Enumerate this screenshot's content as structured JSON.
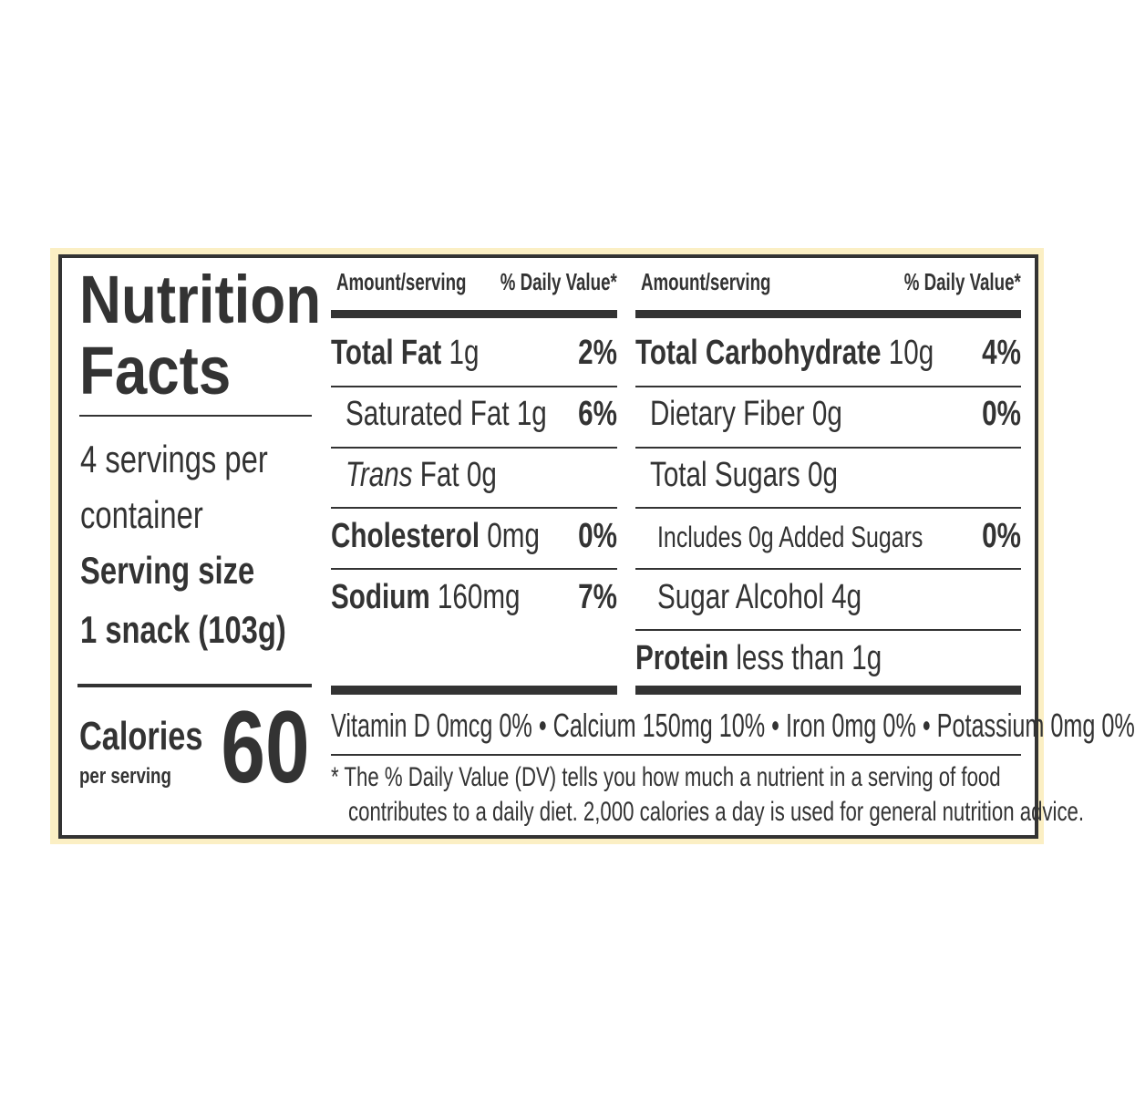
{
  "title": [
    "Nutrition",
    "Facts"
  ],
  "servings_per_container": [
    "4 servings per",
    "container"
  ],
  "serving_size_label": "Serving size",
  "serving_size_value": "1 snack (103g)",
  "calories_label": "Calories",
  "calories_sub": "per serving",
  "calories_value": "60",
  "header": {
    "amount": "Amount/serving",
    "dv": "% Daily Value*"
  },
  "left_rows": [
    {
      "bold": "Total Fat",
      "value": " 1g",
      "dv": "2%"
    },
    {
      "bold": "",
      "value": "Saturated Fat 1g",
      "dv": "6%"
    },
    {
      "italic": "Trans",
      "value": " Fat 0g",
      "dv": ""
    },
    {
      "bold": "Cholesterol",
      "value": " 0mg",
      "dv": "0%"
    },
    {
      "bold": "Sodium",
      "value": " 160mg",
      "dv": "7%"
    }
  ],
  "right_rows": [
    {
      "bold": "Total Carbohydrate",
      "value": " 10g",
      "dv": "4%"
    },
    {
      "bold": "",
      "value": "Dietary Fiber 0g",
      "dv": "0%"
    },
    {
      "bold": "",
      "value": "Total Sugars 0g",
      "dv": ""
    },
    {
      "bold": "",
      "value": "Includes 0g Added Sugars",
      "dv": "0%"
    },
    {
      "bold": "",
      "value": "Sugar Alcohol 4g",
      "dv": ""
    },
    {
      "bold": "Protein",
      "value": " less than 1g",
      "dv": ""
    }
  ],
  "vitamins": "Vitamin D 0mcg 0% • Calcium 150mg 10% • Iron 0mg 0% • Potassium 0mg 0%",
  "footnote": [
    "* The % Daily Value (DV) tells you how much a nutrient in a serving of food",
    "contributes to a daily diet. 2,000 calories a day is used for general nutrition advice."
  ],
  "colors": {
    "text": "#333333",
    "border_background": "#fbefc4"
  }
}
